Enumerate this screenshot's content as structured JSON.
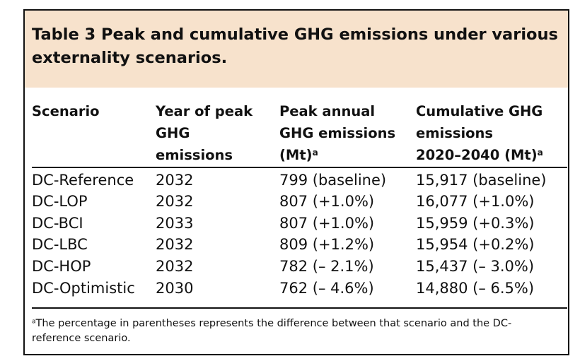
{
  "table": {
    "caption": "Table 3 Peak and cumulative GHG emissions under various externality scenarios.",
    "headers": [
      {
        "lines": [
          "Scenario"
        ]
      },
      {
        "lines": [
          "Year of peak",
          "GHG",
          "emissions"
        ]
      },
      {
        "lines": [
          "Peak annual",
          "GHG emissions",
          "(Mt)"
        ],
        "superscript": "a"
      },
      {
        "lines": [
          "Cumulative GHG",
          "emissions",
          "2020–2040 (Mt)"
        ],
        "superscript": "a"
      }
    ],
    "rows": [
      [
        "DC-Reference",
        "2032",
        "799 (baseline)",
        "15,917 (baseline)"
      ],
      [
        "DC-LOP",
        "2032",
        "807 (+1.0%)",
        "16,077 (+1.0%)"
      ],
      [
        "DC-BCI",
        "2033",
        "807 (+1.0%)",
        "15,959 (+0.3%)"
      ],
      [
        "DC-LBC",
        "2032",
        "809 (+1.2%)",
        "15,954 (+0.2%)"
      ],
      [
        "DC-HOP",
        "2032",
        "782 (– 2.1%)",
        "15,437 (– 3.0%)"
      ],
      [
        "DC-Optimistic",
        "2030",
        "762 (– 4.6%)",
        "14,880 (– 6.5%)"
      ]
    ],
    "footnote": {
      "marker": "a",
      "text": "The percentage in parentheses represents the difference between that scenario and the DC-reference scenario."
    }
  },
  "colors": {
    "caption_background": "#f7e2cc",
    "text": "#111111",
    "rules": "#111111"
  }
}
